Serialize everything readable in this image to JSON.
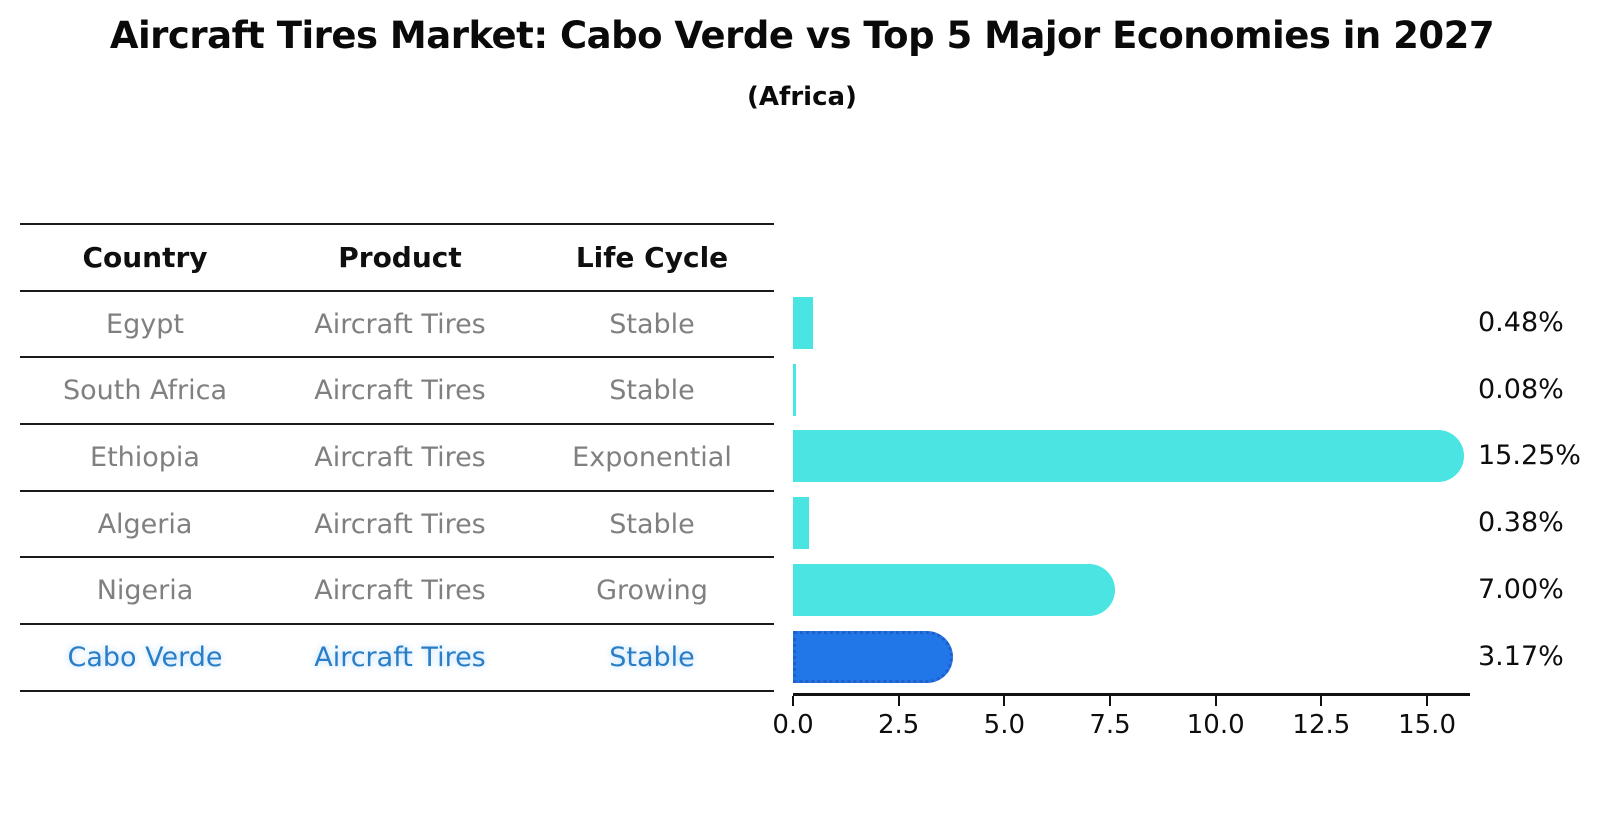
{
  "title": "Aircraft Tires Market: Cabo Verde vs Top 5 Major Economies in 2027",
  "subtitle": "(Africa)",
  "table": {
    "headers": [
      "Country",
      "Product",
      "Life Cycle"
    ],
    "rows": [
      {
        "country": "Egypt",
        "product": "Aircraft Tires",
        "life_cycle": "Stable",
        "highlighted": false
      },
      {
        "country": "South Africa",
        "product": "Aircraft Tires",
        "life_cycle": "Stable",
        "highlighted": false
      },
      {
        "country": "Ethiopia",
        "product": "Aircraft Tires",
        "life_cycle": "Exponential",
        "highlighted": false
      },
      {
        "country": "Algeria",
        "product": "Aircraft Tires",
        "life_cycle": "Stable",
        "highlighted": false
      },
      {
        "country": "Nigeria",
        "product": "Aircraft Tires",
        "life_cycle": "Growing",
        "highlighted": false
      },
      {
        "country": "Cabo Verde",
        "product": "Aircraft Tires",
        "life_cycle": "Stable",
        "highlighted": true
      }
    ]
  },
  "chart_data": {
    "type": "bar",
    "orientation": "horizontal",
    "title": "Aircraft Tires Market: Cabo Verde vs Top 5 Major Economies in 2027",
    "subtitle": "(Africa)",
    "categories": [
      "Egypt",
      "South Africa",
      "Ethiopia",
      "Algeria",
      "Nigeria",
      "Cabo Verde"
    ],
    "values": [
      0.48,
      0.08,
      15.25,
      0.38,
      7.0,
      3.17
    ],
    "value_labels": [
      "0.48%",
      "0.08%",
      "15.25%",
      "0.38%",
      "7.00%",
      "3.17%"
    ],
    "xlim": [
      0,
      16
    ],
    "x_ticks": [
      0.0,
      2.5,
      5.0,
      7.5,
      10.0,
      12.5,
      15.0
    ],
    "x_tick_labels": [
      "0.0",
      "2.5",
      "5.0",
      "7.5",
      "10.0",
      "12.5",
      "15.0"
    ],
    "grid": false,
    "legend": false,
    "xlabel": "",
    "ylabel": ""
  },
  "colors": {
    "bar": "#4AE5E2",
    "highlight_fill": "#2277E8",
    "highlight_border": "#1E5FC9",
    "axis": "#111111",
    "table_line": "#1a1a1a",
    "cell_text": "#808080",
    "header_text": "#0f0f0f",
    "highlight_text": "#2B7EC6"
  }
}
